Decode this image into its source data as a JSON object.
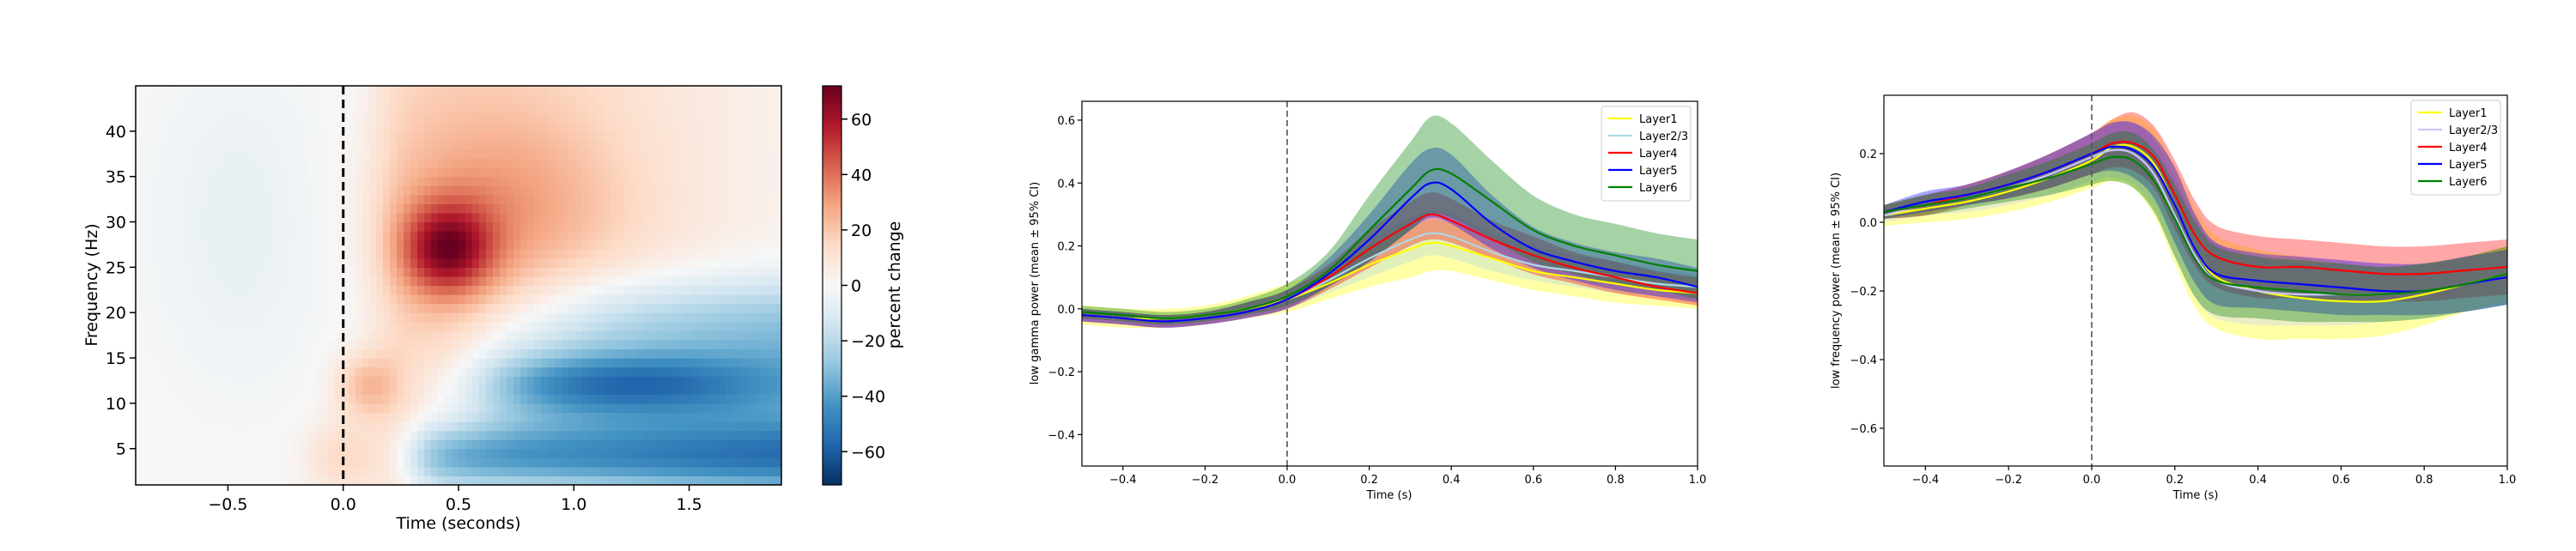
{
  "chart_data": [
    {
      "type": "heatmap",
      "xlabel": "Time (seconds)",
      "ylabel": "Frequency (Hz)",
      "xlim": [
        -0.9,
        1.9
      ],
      "ylim": [
        1,
        45
      ],
      "xticks": [
        -0.5,
        0.0,
        0.5,
        1.0,
        1.5
      ],
      "xtick_labels": [
        "−0.5",
        "0.0",
        "0.5",
        "1.0",
        "1.5"
      ],
      "yticks": [
        5,
        10,
        15,
        20,
        25,
        30,
        35,
        40
      ],
      "ytick_labels": [
        "5",
        "10",
        "15",
        "20",
        "25",
        "30",
        "35",
        "40"
      ],
      "event_line_x": 0.0,
      "colormap": "RdBu_r",
      "colorbar": {
        "label": "percent change",
        "vmin": -72,
        "vmax": 72,
        "ticks": [
          -60,
          -40,
          -20,
          0,
          20,
          40,
          60
        ],
        "tick_labels": [
          "−60",
          "−40",
          "−20",
          "0",
          "20",
          "40",
          "60"
        ]
      },
      "features": [
        {
          "time": 0.45,
          "freq": 27,
          "percent_change": 72
        },
        {
          "time": 0.2,
          "freq": 12,
          "percent_change": 25
        },
        {
          "time": 0.9,
          "freq": 5,
          "percent_change": -65
        },
        {
          "time": 1.2,
          "freq": 12,
          "percent_change": -40
        },
        {
          "time": 1.5,
          "freq": 20,
          "percent_change": -20
        },
        {
          "time": 1.0,
          "freq": 38,
          "percent_change": 15
        }
      ]
    },
    {
      "type": "line",
      "xlabel": "Time (s)",
      "ylabel": "low gamma power (mean ± 95% CI)",
      "xlim": [
        -0.5,
        1.0
      ],
      "ylim": [
        -0.5,
        0.66
      ],
      "xticks": [
        -0.4,
        -0.2,
        0.0,
        0.2,
        0.4,
        0.6,
        0.8,
        1.0
      ],
      "xtick_labels": [
        "−0.4",
        "−0.2",
        "0.0",
        "0.2",
        "0.4",
        "0.6",
        "0.8",
        "1.0"
      ],
      "yticks": [
        -0.4,
        -0.2,
        0.0,
        0.2,
        0.4,
        0.6
      ],
      "ytick_labels": [
        "−0.4",
        "−0.2",
        "0.0",
        "0.2",
        "0.4",
        "0.6"
      ],
      "event_line_x": 0.0,
      "legend_position": "top-right",
      "x": [
        -0.5,
        -0.4,
        -0.3,
        -0.2,
        -0.1,
        0.0,
        0.1,
        0.2,
        0.3,
        0.35,
        0.4,
        0.5,
        0.6,
        0.7,
        0.8,
        0.9,
        1.0
      ],
      "series": [
        {
          "name": "Layer1",
          "color": "#ffff00",
          "values": [
            -0.02,
            -0.03,
            -0.03,
            -0.02,
            0.0,
            0.03,
            0.08,
            0.14,
            0.19,
            0.21,
            0.2,
            0.16,
            0.12,
            0.1,
            0.08,
            0.06,
            0.05
          ],
          "lower": [
            -0.05,
            -0.06,
            -0.06,
            -0.05,
            -0.03,
            -0.01,
            0.03,
            0.07,
            0.1,
            0.12,
            0.12,
            0.09,
            0.06,
            0.04,
            0.02,
            0.01,
            0.0
          ],
          "upper": [
            0.01,
            0.0,
            0.0,
            0.01,
            0.04,
            0.08,
            0.13,
            0.2,
            0.26,
            0.28,
            0.27,
            0.22,
            0.18,
            0.15,
            0.13,
            0.11,
            0.1
          ]
        },
        {
          "name": "Layer2/3",
          "color": "#add8e6",
          "values": [
            -0.02,
            -0.03,
            -0.04,
            -0.03,
            -0.01,
            0.03,
            0.09,
            0.16,
            0.22,
            0.24,
            0.23,
            0.18,
            0.14,
            0.12,
            0.1,
            0.08,
            0.07
          ],
          "lower": [
            -0.04,
            -0.05,
            -0.06,
            -0.05,
            -0.03,
            0.0,
            0.05,
            0.1,
            0.15,
            0.17,
            0.16,
            0.12,
            0.09,
            0.07,
            0.05,
            0.04,
            0.03
          ],
          "upper": [
            0.0,
            -0.01,
            -0.02,
            -0.01,
            0.02,
            0.06,
            0.13,
            0.22,
            0.29,
            0.31,
            0.3,
            0.24,
            0.2,
            0.17,
            0.15,
            0.13,
            0.11
          ]
        },
        {
          "name": "Layer4",
          "color": "#ff0000",
          "values": [
            -0.02,
            -0.03,
            -0.04,
            -0.03,
            -0.01,
            0.03,
            0.1,
            0.19,
            0.27,
            0.3,
            0.28,
            0.22,
            0.17,
            0.13,
            0.1,
            0.07,
            0.05
          ],
          "lower": [
            -0.04,
            -0.05,
            -0.06,
            -0.05,
            -0.03,
            0.0,
            0.06,
            0.13,
            0.2,
            0.22,
            0.21,
            0.16,
            0.11,
            0.08,
            0.05,
            0.03,
            0.01
          ],
          "upper": [
            0.0,
            -0.01,
            -0.02,
            -0.01,
            0.02,
            0.06,
            0.14,
            0.25,
            0.34,
            0.37,
            0.35,
            0.28,
            0.23,
            0.18,
            0.15,
            0.12,
            0.1
          ]
        },
        {
          "name": "Layer5",
          "color": "#0000ff",
          "values": [
            -0.02,
            -0.03,
            -0.04,
            -0.03,
            -0.01,
            0.03,
            0.11,
            0.22,
            0.35,
            0.4,
            0.38,
            0.27,
            0.19,
            0.15,
            0.12,
            0.1,
            0.07
          ],
          "lower": [
            -0.04,
            -0.05,
            -0.06,
            -0.05,
            -0.03,
            0.0,
            0.07,
            0.15,
            0.25,
            0.29,
            0.27,
            0.19,
            0.13,
            0.09,
            0.06,
            0.04,
            0.02
          ],
          "upper": [
            0.0,
            -0.01,
            -0.02,
            -0.01,
            0.02,
            0.06,
            0.16,
            0.3,
            0.46,
            0.51,
            0.49,
            0.36,
            0.26,
            0.21,
            0.18,
            0.16,
            0.13
          ]
        },
        {
          "name": "Layer6",
          "color": "#008000",
          "values": [
            -0.01,
            -0.02,
            -0.03,
            -0.02,
            0.0,
            0.04,
            0.12,
            0.25,
            0.38,
            0.44,
            0.43,
            0.34,
            0.25,
            0.2,
            0.17,
            0.14,
            0.12
          ],
          "lower": [
            -0.03,
            -0.04,
            -0.05,
            -0.04,
            -0.02,
            0.01,
            0.07,
            0.15,
            0.25,
            0.3,
            0.29,
            0.22,
            0.15,
            0.11,
            0.08,
            0.06,
            0.03
          ],
          "upper": [
            0.01,
            0.0,
            -0.01,
            0.0,
            0.03,
            0.08,
            0.18,
            0.36,
            0.53,
            0.61,
            0.59,
            0.47,
            0.36,
            0.3,
            0.27,
            0.24,
            0.22
          ]
        }
      ]
    },
    {
      "type": "line",
      "xlabel": "Time (s)",
      "ylabel": "low frequency power (mean ± 95% CI)",
      "xlim": [
        -0.5,
        1.0
      ],
      "ylim": [
        -0.71,
        0.37
      ],
      "xticks": [
        -0.4,
        -0.2,
        0.0,
        0.2,
        0.4,
        0.6,
        0.8,
        1.0
      ],
      "xtick_labels": [
        "−0.4",
        "−0.2",
        "0.0",
        "0.2",
        "0.4",
        "0.6",
        "0.8",
        "1.0"
      ],
      "yticks": [
        -0.6,
        -0.4,
        -0.2,
        0.0,
        0.2
      ],
      "ytick_labels": [
        "−0.6",
        "−0.4",
        "−0.2",
        "0.0",
        "0.2"
      ],
      "event_line_x": 0.0,
      "legend_position": "top-right",
      "x": [
        -0.5,
        -0.4,
        -0.3,
        -0.2,
        -0.1,
        0.0,
        0.05,
        0.1,
        0.15,
        0.2,
        0.25,
        0.3,
        0.4,
        0.5,
        0.6,
        0.7,
        0.8,
        0.9,
        1.0
      ],
      "series": [
        {
          "name": "Layer1",
          "color": "#ffff00",
          "values": [
            0.02,
            0.04,
            0.06,
            0.09,
            0.13,
            0.18,
            0.22,
            0.22,
            0.17,
            0.05,
            -0.08,
            -0.16,
            -0.2,
            -0.22,
            -0.23,
            -0.23,
            -0.21,
            -0.18,
            -0.15
          ],
          "lower": [
            -0.01,
            0.0,
            0.01,
            0.03,
            0.06,
            0.1,
            0.12,
            0.1,
            0.02,
            -0.12,
            -0.25,
            -0.31,
            -0.34,
            -0.34,
            -0.34,
            -0.33,
            -0.3,
            -0.26,
            -0.23
          ],
          "upper": [
            0.05,
            0.08,
            0.11,
            0.15,
            0.2,
            0.26,
            0.3,
            0.31,
            0.27,
            0.16,
            0.04,
            -0.04,
            -0.08,
            -0.1,
            -0.12,
            -0.13,
            -0.12,
            -0.1,
            -0.07
          ]
        },
        {
          "name": "Layer2/3",
          "color": "#c8c8ff",
          "values": [
            0.02,
            0.05,
            0.07,
            0.1,
            0.14,
            0.19,
            0.21,
            0.2,
            0.14,
            0.02,
            -0.1,
            -0.17,
            -0.2,
            -0.21,
            -0.21,
            -0.21,
            -0.2,
            -0.18,
            -0.16
          ],
          "lower": [
            0.0,
            0.02,
            0.03,
            0.05,
            0.08,
            0.12,
            0.13,
            0.11,
            0.04,
            -0.1,
            -0.22,
            -0.28,
            -0.3,
            -0.3,
            -0.3,
            -0.29,
            -0.28,
            -0.26,
            -0.24
          ],
          "upper": [
            0.04,
            0.08,
            0.11,
            0.15,
            0.2,
            0.26,
            0.29,
            0.29,
            0.24,
            0.13,
            0.02,
            -0.06,
            -0.1,
            -0.12,
            -0.12,
            -0.13,
            -0.12,
            -0.1,
            -0.08
          ]
        },
        {
          "name": "Layer4",
          "color": "#ff0000",
          "values": [
            0.03,
            0.05,
            0.08,
            0.11,
            0.15,
            0.2,
            0.23,
            0.23,
            0.19,
            0.08,
            -0.04,
            -0.1,
            -0.13,
            -0.13,
            -0.14,
            -0.15,
            -0.15,
            -0.14,
            -0.13
          ],
          "lower": [
            0.01,
            0.02,
            0.05,
            0.07,
            0.1,
            0.14,
            0.16,
            0.15,
            0.1,
            -0.02,
            -0.13,
            -0.19,
            -0.22,
            -0.22,
            -0.23,
            -0.23,
            -0.23,
            -0.22,
            -0.21
          ],
          "upper": [
            0.05,
            0.08,
            0.11,
            0.15,
            0.2,
            0.26,
            0.3,
            0.32,
            0.28,
            0.18,
            0.06,
            -0.01,
            -0.04,
            -0.05,
            -0.06,
            -0.07,
            -0.07,
            -0.06,
            -0.05
          ]
        },
        {
          "name": "Layer5",
          "color": "#0000ff",
          "values": [
            0.03,
            0.06,
            0.08,
            0.11,
            0.15,
            0.2,
            0.22,
            0.21,
            0.16,
            0.05,
            -0.08,
            -0.15,
            -0.17,
            -0.18,
            -0.19,
            -0.2,
            -0.2,
            -0.18,
            -0.16
          ],
          "lower": [
            0.01,
            0.03,
            0.05,
            0.07,
            0.1,
            0.14,
            0.15,
            0.13,
            0.07,
            -0.06,
            -0.18,
            -0.24,
            -0.25,
            -0.26,
            -0.27,
            -0.27,
            -0.27,
            -0.26,
            -0.24
          ],
          "upper": [
            0.05,
            0.09,
            0.11,
            0.15,
            0.2,
            0.26,
            0.29,
            0.29,
            0.25,
            0.16,
            0.02,
            -0.06,
            -0.09,
            -0.1,
            -0.11,
            -0.12,
            -0.12,
            -0.1,
            -0.08
          ]
        },
        {
          "name": "Layer6",
          "color": "#008000",
          "values": [
            0.03,
            0.05,
            0.07,
            0.1,
            0.13,
            0.17,
            0.19,
            0.18,
            0.12,
            0.01,
            -0.11,
            -0.17,
            -0.19,
            -0.2,
            -0.21,
            -0.21,
            -0.2,
            -0.18,
            -0.15
          ],
          "lower": [
            0.01,
            0.02,
            0.04,
            0.06,
            0.08,
            0.11,
            0.12,
            0.1,
            0.03,
            -0.1,
            -0.22,
            -0.27,
            -0.28,
            -0.29,
            -0.29,
            -0.29,
            -0.28,
            -0.26,
            -0.24
          ],
          "upper": [
            0.05,
            0.08,
            0.1,
            0.14,
            0.18,
            0.23,
            0.26,
            0.26,
            0.21,
            0.11,
            0.0,
            -0.07,
            -0.1,
            -0.11,
            -0.12,
            -0.13,
            -0.12,
            -0.1,
            -0.07
          ]
        }
      ]
    }
  ]
}
